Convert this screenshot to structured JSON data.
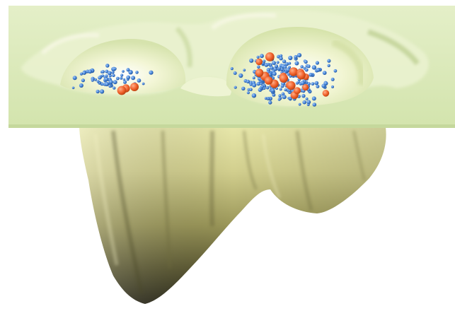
{
  "figure": {
    "kind": "3d-energy-landscape-rendering",
    "colors": {
      "background": "#ffffff",
      "plane": "#d8e8b6",
      "plane_edge": "#c9dba2",
      "surface_light": "#eef0b8",
      "surface_mid": "#c9c88a",
      "surface_dark": "#2a2818",
      "particle_small": "#3f7fd6",
      "particle_large": "#f0602a"
    },
    "icons": {
      "small_particle": "small-blue-sphere",
      "large_particle": "large-orange-sphere"
    },
    "wells": [
      {
        "name": "left-well",
        "relative_depth": 0.95
      },
      {
        "name": "right-well",
        "relative_depth": 0.7
      }
    ],
    "particle_clusters": [
      {
        "name": "left-cluster",
        "small_count": 70,
        "large_count": 3
      },
      {
        "name": "right-cluster",
        "small_count": 230,
        "large_count": 18
      }
    ]
  }
}
